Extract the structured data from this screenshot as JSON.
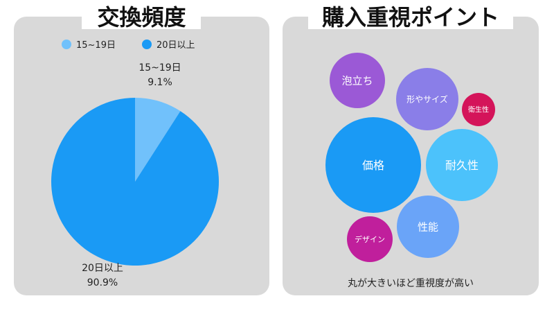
{
  "left_panel": {
    "title": "交換頻度"
  },
  "right_panel": {
    "title": "購入重視ポイント",
    "footnote": "丸が大きいほど重視度が高い"
  },
  "chart_data": [
    {
      "type": "pie",
      "title": "交換頻度",
      "legend": [
        {
          "label": "15~19日",
          "color": "#71c1fb"
        },
        {
          "label": "20日以上",
          "color": "#1a9af5"
        }
      ],
      "legend_placement": "top",
      "slices": [
        {
          "label": "15~19日",
          "value": 9.1,
          "value_label": "9.1%",
          "color": "#71c1fb"
        },
        {
          "label": "20日以上",
          "value": 90.9,
          "value_label": "90.9%",
          "color": "#1a9af5"
        }
      ]
    },
    {
      "type": "bubble",
      "title": "購入重視ポイント",
      "note": "丸が大きいほど重視度が高い",
      "bubbles": [
        {
          "label": "泡立ち",
          "size": 37,
          "color": "#9b59d6"
        },
        {
          "label": "形やサイズ",
          "size": 33,
          "color": "#8a7ee8"
        },
        {
          "label": "衛生性",
          "size": 17,
          "color": "#d4145a"
        },
        {
          "label": "価格",
          "size": 100,
          "color": "#1a9af5"
        },
        {
          "label": "耐久性",
          "size": 48,
          "color": "#4cc2fb"
        },
        {
          "label": "性能",
          "size": 37,
          "color": "#6aa4f8"
        },
        {
          "label": "デザイン",
          "size": 27,
          "color": "#c01f9c"
        }
      ]
    }
  ]
}
